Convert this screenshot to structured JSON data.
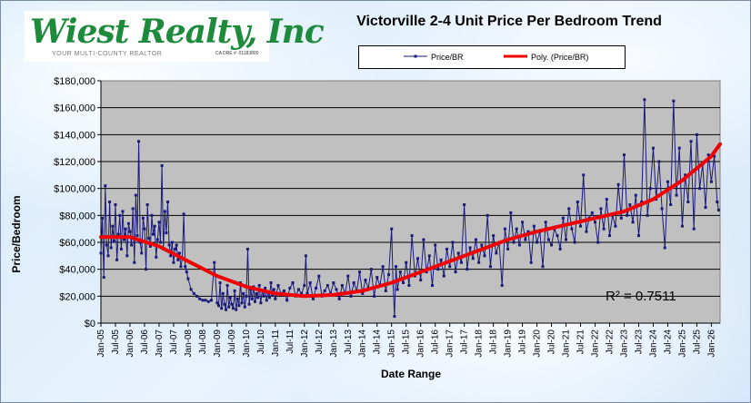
{
  "logo": {
    "name": "Wiest Realty, Inc",
    "tagline": "YOUR MULTI-COUNTY REALTOR",
    "license": "CA DRE #: 01183800"
  },
  "chart_data": {
    "type": "line",
    "title": "Victorville 2-4 Unit Price Per Bedroom Trend",
    "xlabel": "Date Range",
    "ylabel": "Price/Bedroom",
    "ylim": [
      0,
      180000
    ],
    "yticks": [
      "$0",
      "$20,000",
      "$40,000",
      "$60,000",
      "$80,000",
      "$100,000",
      "$120,000",
      "$140,000",
      "$160,000",
      "$180,000"
    ],
    "xticks": [
      "Jan-05",
      "Jul-05",
      "Jan-06",
      "Jul-06",
      "Jan-07",
      "Jul-07",
      "Jan-08",
      "Jul-08",
      "Jan-09",
      "Jul-09",
      "Jan-10",
      "Jul-10",
      "Jan-11",
      "Jul-11",
      "Jan-12",
      "Jul-12",
      "Jan-13",
      "Jul-13",
      "Jan-14",
      "Jul-14",
      "Jan-15",
      "Jul-15",
      "Jan-16",
      "Jul-16",
      "Jan-17",
      "Jul-17",
      "Jan-18",
      "Jul-18",
      "Jan-19",
      "Jul-19",
      "Jan-20",
      "Jul-20",
      "Jan-21",
      "Jul-21",
      "Jan-22",
      "Jul-22",
      "Jan-23",
      "Jul-23",
      "Jan-24",
      "Jul-24",
      "Jan-25",
      "Jul-25",
      "Jan-26"
    ],
    "grid": true,
    "legend_placement": "top",
    "r_squared_label": "R² = 0.7511",
    "colors": {
      "series": "#1a1a7a",
      "trend": "#ee0000",
      "plot_bg": "#c0c0c0"
    },
    "series": [
      {
        "name": "Price/BR",
        "points": [
          [
            2005.0,
            52000
          ],
          [
            2005.05,
            78000
          ],
          [
            2005.1,
            34000
          ],
          [
            2005.15,
            102000
          ],
          [
            2005.2,
            58000
          ],
          [
            2005.25,
            50000
          ],
          [
            2005.3,
            90000
          ],
          [
            2005.35,
            56000
          ],
          [
            2005.4,
            72000
          ],
          [
            2005.45,
            61000
          ],
          [
            2005.5,
            88000
          ],
          [
            2005.55,
            47000
          ],
          [
            2005.6,
            66000
          ],
          [
            2005.65,
            80000
          ],
          [
            2005.7,
            55000
          ],
          [
            2005.75,
            83000
          ],
          [
            2005.8,
            62000
          ],
          [
            2005.85,
            70000
          ],
          [
            2005.9,
            50000
          ],
          [
            2005.95,
            74000
          ],
          [
            2006.0,
            68000
          ],
          [
            2006.05,
            58000
          ],
          [
            2006.1,
            85000
          ],
          [
            2006.15,
            45000
          ],
          [
            2006.2,
            95000
          ],
          [
            2006.25,
            65000
          ],
          [
            2006.3,
            135000
          ],
          [
            2006.35,
            60000
          ],
          [
            2006.4,
            52000
          ],
          [
            2006.45,
            78000
          ],
          [
            2006.5,
            70000
          ],
          [
            2006.55,
            40000
          ],
          [
            2006.6,
            88000
          ],
          [
            2006.65,
            63000
          ],
          [
            2006.7,
            57000
          ],
          [
            2006.75,
            80000
          ],
          [
            2006.8,
            66000
          ],
          [
            2006.85,
            72000
          ],
          [
            2006.9,
            49000
          ],
          [
            2006.95,
            62000
          ],
          [
            2007.0,
            75000
          ],
          [
            2007.05,
            60000
          ],
          [
            2007.1,
            117000
          ],
          [
            2007.15,
            55000
          ],
          [
            2007.2,
            83000
          ],
          [
            2007.25,
            67000
          ],
          [
            2007.3,
            90000
          ],
          [
            2007.35,
            58000
          ],
          [
            2007.4,
            50000
          ],
          [
            2007.45,
            60000
          ],
          [
            2007.5,
            45000
          ],
          [
            2007.55,
            55000
          ],
          [
            2007.6,
            58000
          ],
          [
            2007.65,
            47000
          ],
          [
            2007.7,
            52000
          ],
          [
            2007.75,
            42000
          ],
          [
            2007.8,
            48000
          ],
          [
            2007.85,
            81000
          ],
          [
            2007.9,
            42000
          ],
          [
            2007.95,
            38000
          ],
          [
            2008.0,
            33000
          ],
          [
            2008.1,
            25000
          ],
          [
            2008.2,
            22000
          ],
          [
            2008.3,
            20000
          ],
          [
            2008.4,
            18000
          ],
          [
            2008.5,
            17000
          ],
          [
            2008.6,
            17000
          ],
          [
            2008.7,
            16000
          ],
          [
            2008.8,
            17000
          ],
          [
            2008.9,
            45000
          ],
          [
            2009.0,
            15000
          ],
          [
            2009.05,
            13000
          ],
          [
            2009.1,
            30000
          ],
          [
            2009.15,
            11000
          ],
          [
            2009.2,
            22000
          ],
          [
            2009.25,
            14000
          ],
          [
            2009.3,
            10000
          ],
          [
            2009.35,
            28000
          ],
          [
            2009.4,
            12000
          ],
          [
            2009.45,
            19000
          ],
          [
            2009.5,
            14000
          ],
          [
            2009.55,
            11000
          ],
          [
            2009.6,
            24000
          ],
          [
            2009.65,
            10000
          ],
          [
            2009.7,
            18000
          ],
          [
            2009.75,
            13000
          ],
          [
            2009.8,
            30000
          ],
          [
            2009.85,
            15000
          ],
          [
            2009.9,
            22000
          ],
          [
            2009.95,
            12000
          ],
          [
            2010.0,
            20000
          ],
          [
            2010.05,
            55000
          ],
          [
            2010.1,
            14000
          ],
          [
            2010.15,
            25000
          ],
          [
            2010.2,
            18000
          ],
          [
            2010.25,
            27000
          ],
          [
            2010.3,
            16000
          ],
          [
            2010.35,
            22000
          ],
          [
            2010.4,
            19000
          ],
          [
            2010.45,
            28000
          ],
          [
            2010.5,
            15000
          ],
          [
            2010.55,
            24000
          ],
          [
            2010.6,
            20000
          ],
          [
            2010.65,
            26000
          ],
          [
            2010.7,
            17000
          ],
          [
            2010.75,
            23000
          ],
          [
            2010.8,
            19000
          ],
          [
            2010.85,
            30000
          ],
          [
            2010.9,
            21000
          ],
          [
            2010.95,
            25000
          ],
          [
            2011.0,
            18000
          ],
          [
            2011.1,
            28000
          ],
          [
            2011.2,
            22000
          ],
          [
            2011.3,
            24000
          ],
          [
            2011.4,
            17000
          ],
          [
            2011.5,
            26000
          ],
          [
            2011.6,
            30000
          ],
          [
            2011.7,
            20000
          ],
          [
            2011.8,
            25000
          ],
          [
            2011.9,
            22000
          ],
          [
            2012.0,
            28000
          ],
          [
            2012.05,
            50000
          ],
          [
            2012.1,
            22000
          ],
          [
            2012.2,
            30000
          ],
          [
            2012.3,
            18000
          ],
          [
            2012.4,
            26000
          ],
          [
            2012.5,
            35000
          ],
          [
            2012.6,
            20000
          ],
          [
            2012.7,
            24000
          ],
          [
            2012.8,
            28000
          ],
          [
            2012.9,
            22000
          ],
          [
            2013.0,
            30000
          ],
          [
            2013.1,
            25000
          ],
          [
            2013.2,
            18000
          ],
          [
            2013.3,
            28000
          ],
          [
            2013.4,
            22000
          ],
          [
            2013.5,
            35000
          ],
          [
            2013.6,
            20000
          ],
          [
            2013.7,
            30000
          ],
          [
            2013.8,
            24000
          ],
          [
            2013.9,
            38000
          ],
          [
            2014.0,
            22000
          ],
          [
            2014.1,
            32000
          ],
          [
            2014.2,
            26000
          ],
          [
            2014.3,
            40000
          ],
          [
            2014.4,
            20000
          ],
          [
            2014.5,
            34000
          ],
          [
            2014.6,
            28000
          ],
          [
            2014.7,
            42000
          ],
          [
            2014.8,
            24000
          ],
          [
            2014.9,
            36000
          ],
          [
            2015.0,
            70000
          ],
          [
            2015.05,
            30000
          ],
          [
            2015.1,
            5000
          ],
          [
            2015.15,
            42000
          ],
          [
            2015.2,
            25000
          ],
          [
            2015.3,
            38000
          ],
          [
            2015.4,
            30000
          ],
          [
            2015.5,
            45000
          ],
          [
            2015.6,
            28000
          ],
          [
            2015.7,
            65000
          ],
          [
            2015.8,
            35000
          ],
          [
            2015.9,
            48000
          ],
          [
            2016.0,
            32000
          ],
          [
            2016.1,
            62000
          ],
          [
            2016.2,
            38000
          ],
          [
            2016.3,
            50000
          ],
          [
            2016.4,
            28000
          ],
          [
            2016.5,
            58000
          ],
          [
            2016.6,
            40000
          ],
          [
            2016.7,
            47000
          ],
          [
            2016.8,
            35000
          ],
          [
            2016.9,
            55000
          ],
          [
            2017.0,
            42000
          ],
          [
            2017.1,
            60000
          ],
          [
            2017.2,
            38000
          ],
          [
            2017.3,
            52000
          ],
          [
            2017.4,
            45000
          ],
          [
            2017.5,
            88000
          ],
          [
            2017.6,
            40000
          ],
          [
            2017.7,
            56000
          ],
          [
            2017.8,
            48000
          ],
          [
            2017.9,
            62000
          ],
          [
            2018.0,
            45000
          ],
          [
            2018.1,
            58000
          ],
          [
            2018.2,
            50000
          ],
          [
            2018.3,
            80000
          ],
          [
            2018.4,
            42000
          ],
          [
            2018.5,
            65000
          ],
          [
            2018.6,
            52000
          ],
          [
            2018.7,
            60000
          ],
          [
            2018.8,
            28000
          ],
          [
            2018.9,
            70000
          ],
          [
            2019.0,
            55000
          ],
          [
            2019.1,
            82000
          ],
          [
            2019.2,
            60000
          ],
          [
            2019.3,
            70000
          ],
          [
            2019.4,
            58000
          ],
          [
            2019.5,
            75000
          ],
          [
            2019.6,
            62000
          ],
          [
            2019.7,
            68000
          ],
          [
            2019.8,
            45000
          ],
          [
            2019.9,
            72000
          ],
          [
            2020.0,
            60000
          ],
          [
            2020.1,
            68000
          ],
          [
            2020.2,
            42000
          ],
          [
            2020.3,
            75000
          ],
          [
            2020.4,
            62000
          ],
          [
            2020.5,
            58000
          ],
          [
            2020.6,
            70000
          ],
          [
            2020.7,
            65000
          ],
          [
            2020.8,
            55000
          ],
          [
            2020.9,
            78000
          ],
          [
            2021.0,
            62000
          ],
          [
            2021.1,
            85000
          ],
          [
            2021.2,
            70000
          ],
          [
            2021.3,
            60000
          ],
          [
            2021.4,
            90000
          ],
          [
            2021.5,
            72000
          ],
          [
            2021.6,
            110000
          ],
          [
            2021.7,
            68000
          ],
          [
            2021.8,
            78000
          ],
          [
            2021.9,
            82000
          ],
          [
            2022.0,
            75000
          ],
          [
            2022.1,
            60000
          ],
          [
            2022.2,
            85000
          ],
          [
            2022.3,
            70000
          ],
          [
            2022.4,
            92000
          ],
          [
            2022.5,
            65000
          ],
          [
            2022.6,
            80000
          ],
          [
            2022.7,
            72000
          ],
          [
            2022.8,
            103000
          ],
          [
            2022.9,
            78000
          ],
          [
            2023.0,
            125000
          ],
          [
            2023.1,
            80000
          ],
          [
            2023.2,
            88000
          ],
          [
            2023.3,
            75000
          ],
          [
            2023.4,
            95000
          ],
          [
            2023.5,
            65000
          ],
          [
            2023.6,
            90000
          ],
          [
            2023.7,
            166000
          ],
          [
            2023.8,
            80000
          ],
          [
            2023.9,
            100000
          ],
          [
            2024.0,
            130000
          ],
          [
            2024.1,
            92000
          ],
          [
            2024.2,
            120000
          ],
          [
            2024.3,
            85000
          ],
          [
            2024.4,
            56000
          ],
          [
            2024.5,
            105000
          ],
          [
            2024.6,
            88000
          ],
          [
            2024.7,
            165000
          ],
          [
            2024.8,
            95000
          ],
          [
            2024.9,
            130000
          ],
          [
            2025.0,
            72000
          ],
          [
            2025.1,
            110000
          ],
          [
            2025.2,
            90000
          ],
          [
            2025.3,
            135000
          ],
          [
            2025.4,
            70000
          ],
          [
            2025.5,
            140000
          ],
          [
            2025.6,
            100000
          ],
          [
            2025.7,
            118000
          ],
          [
            2025.8,
            86000
          ],
          [
            2025.9,
            125000
          ],
          [
            2026.0,
            105000
          ],
          [
            2026.1,
            124000
          ],
          [
            2026.2,
            90000
          ],
          [
            2026.25,
            84000
          ]
        ]
      },
      {
        "name": "Poly. (Price/BR)",
        "points": [
          [
            2005.0,
            64000
          ],
          [
            2006.0,
            64000
          ],
          [
            2007.0,
            57000
          ],
          [
            2008.0,
            46000
          ],
          [
            2009.0,
            35000
          ],
          [
            2010.0,
            27000
          ],
          [
            2011.0,
            22000
          ],
          [
            2012.0,
            20000
          ],
          [
            2013.0,
            21000
          ],
          [
            2014.0,
            24000
          ],
          [
            2015.0,
            30000
          ],
          [
            2016.0,
            38000
          ],
          [
            2017.0,
            46000
          ],
          [
            2018.0,
            54000
          ],
          [
            2019.0,
            62000
          ],
          [
            2020.0,
            68000
          ],
          [
            2021.0,
            73000
          ],
          [
            2022.0,
            78000
          ],
          [
            2023.0,
            83000
          ],
          [
            2024.0,
            92000
          ],
          [
            2025.0,
            106000
          ],
          [
            2026.0,
            124000
          ],
          [
            2026.3,
            133000
          ]
        ]
      }
    ]
  }
}
